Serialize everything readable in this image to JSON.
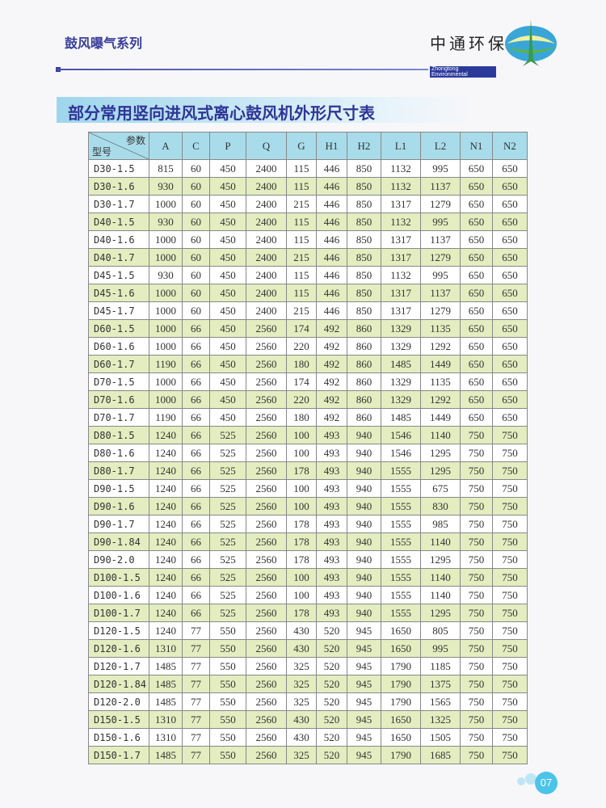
{
  "header": {
    "series": "鼓风曝气系列",
    "brand_cn": "中通环保",
    "brand_en": "Zhongtong Environmental"
  },
  "title": "部分常用竖向进风式离心鼓风机外形尺寸表",
  "table": {
    "corner_param": "参数",
    "corner_model": "型号",
    "columns": [
      "A",
      "C",
      "P",
      "Q",
      "G",
      "H1",
      "H2",
      "L1",
      "L2",
      "N1",
      "N2"
    ],
    "rows": [
      [
        "D30-1.5",
        "815",
        "60",
        "450",
        "2400",
        "115",
        "446",
        "850",
        "1132",
        "995",
        "650",
        "650"
      ],
      [
        "D30-1.6",
        "930",
        "60",
        "450",
        "2400",
        "115",
        "446",
        "850",
        "1132",
        "1137",
        "650",
        "650"
      ],
      [
        "D30-1.7",
        "1000",
        "60",
        "450",
        "2400",
        "215",
        "446",
        "850",
        "1317",
        "1279",
        "650",
        "650"
      ],
      [
        "D40-1.5",
        "930",
        "60",
        "450",
        "2400",
        "115",
        "446",
        "850",
        "1132",
        "995",
        "650",
        "650"
      ],
      [
        "D40-1.6",
        "1000",
        "60",
        "450",
        "2400",
        "115",
        "446",
        "850",
        "1317",
        "1137",
        "650",
        "650"
      ],
      [
        "D40-1.7",
        "1000",
        "60",
        "450",
        "2400",
        "215",
        "446",
        "850",
        "1317",
        "1279",
        "650",
        "650"
      ],
      [
        "D45-1.5",
        "930",
        "60",
        "450",
        "2400",
        "115",
        "446",
        "850",
        "1132",
        "995",
        "650",
        "650"
      ],
      [
        "D45-1.6",
        "1000",
        "60",
        "450",
        "2400",
        "115",
        "446",
        "850",
        "1317",
        "1137",
        "650",
        "650"
      ],
      [
        "D45-1.7",
        "1000",
        "60",
        "450",
        "2400",
        "215",
        "446",
        "850",
        "1317",
        "1279",
        "650",
        "650"
      ],
      [
        "D60-1.5",
        "1000",
        "66",
        "450",
        "2560",
        "174",
        "492",
        "860",
        "1329",
        "1135",
        "650",
        "650"
      ],
      [
        "D60-1.6",
        "1000",
        "66",
        "450",
        "2560",
        "220",
        "492",
        "860",
        "1329",
        "1292",
        "650",
        "650"
      ],
      [
        "D60-1.7",
        "1190",
        "66",
        "450",
        "2560",
        "180",
        "492",
        "860",
        "1485",
        "1449",
        "650",
        "650"
      ],
      [
        "D70-1.5",
        "1000",
        "66",
        "450",
        "2560",
        "174",
        "492",
        "860",
        "1329",
        "1135",
        "650",
        "650"
      ],
      [
        "D70-1.6",
        "1000",
        "66",
        "450",
        "2560",
        "220",
        "492",
        "860",
        "1329",
        "1292",
        "650",
        "650"
      ],
      [
        "D70-1.7",
        "1190",
        "66",
        "450",
        "2560",
        "180",
        "492",
        "860",
        "1485",
        "1449",
        "650",
        "650"
      ],
      [
        "D80-1.5",
        "1240",
        "66",
        "525",
        "2560",
        "100",
        "493",
        "940",
        "1546",
        "1140",
        "750",
        "750"
      ],
      [
        "D80-1.6",
        "1240",
        "66",
        "525",
        "2560",
        "100",
        "493",
        "940",
        "1546",
        "1295",
        "750",
        "750"
      ],
      [
        "D80-1.7",
        "1240",
        "66",
        "525",
        "2560",
        "178",
        "493",
        "940",
        "1555",
        "1295",
        "750",
        "750"
      ],
      [
        "D90-1.5",
        "1240",
        "66",
        "525",
        "2560",
        "100",
        "493",
        "940",
        "1555",
        "675",
        "750",
        "750"
      ],
      [
        "D90-1.6",
        "1240",
        "66",
        "525",
        "2560",
        "100",
        "493",
        "940",
        "1555",
        "830",
        "750",
        "750"
      ],
      [
        "D90-1.7",
        "1240",
        "66",
        "525",
        "2560",
        "178",
        "493",
        "940",
        "1555",
        "985",
        "750",
        "750"
      ],
      [
        "D90-1.84",
        "1240",
        "66",
        "525",
        "2560",
        "178",
        "493",
        "940",
        "1555",
        "1140",
        "750",
        "750"
      ],
      [
        "D90-2.0",
        "1240",
        "66",
        "525",
        "2560",
        "178",
        "493",
        "940",
        "1555",
        "1295",
        "750",
        "750"
      ],
      [
        "D100-1.5",
        "1240",
        "66",
        "525",
        "2560",
        "100",
        "493",
        "940",
        "1555",
        "1140",
        "750",
        "750"
      ],
      [
        "D100-1.6",
        "1240",
        "66",
        "525",
        "2560",
        "100",
        "493",
        "940",
        "1555",
        "1140",
        "750",
        "750"
      ],
      [
        "D100-1.7",
        "1240",
        "66",
        "525",
        "2560",
        "178",
        "493",
        "940",
        "1555",
        "1295",
        "750",
        "750"
      ],
      [
        "D120-1.5",
        "1240",
        "77",
        "550",
        "2560",
        "430",
        "520",
        "945",
        "1650",
        "805",
        "750",
        "750"
      ],
      [
        "D120-1.6",
        "1310",
        "77",
        "550",
        "2560",
        "430",
        "520",
        "945",
        "1650",
        "995",
        "750",
        "750"
      ],
      [
        "D120-1.7",
        "1485",
        "77",
        "550",
        "2560",
        "325",
        "520",
        "945",
        "1790",
        "1185",
        "750",
        "750"
      ],
      [
        "D120-1.84",
        "1485",
        "77",
        "550",
        "2560",
        "325",
        "520",
        "945",
        "1790",
        "1375",
        "750",
        "750"
      ],
      [
        "D120-2.0",
        "1485",
        "77",
        "550",
        "2560",
        "325",
        "520",
        "945",
        "1790",
        "1565",
        "750",
        "750"
      ],
      [
        "D150-1.5",
        "1310",
        "77",
        "550",
        "2560",
        "430",
        "520",
        "945",
        "1650",
        "1325",
        "750",
        "750"
      ],
      [
        "D150-1.6",
        "1310",
        "77",
        "550",
        "2560",
        "430",
        "520",
        "945",
        "1650",
        "1505",
        "750",
        "750"
      ],
      [
        "D150-1.7",
        "1485",
        "77",
        "550",
        "2560",
        "325",
        "520",
        "945",
        "1790",
        "1685",
        "750",
        "750"
      ]
    ]
  },
  "page_number": "07",
  "colors": {
    "header_bg": "#a8dcea",
    "alt_row": "#e3edc0",
    "title": "#2f3596",
    "page_badge": "#4cc3e8"
  }
}
